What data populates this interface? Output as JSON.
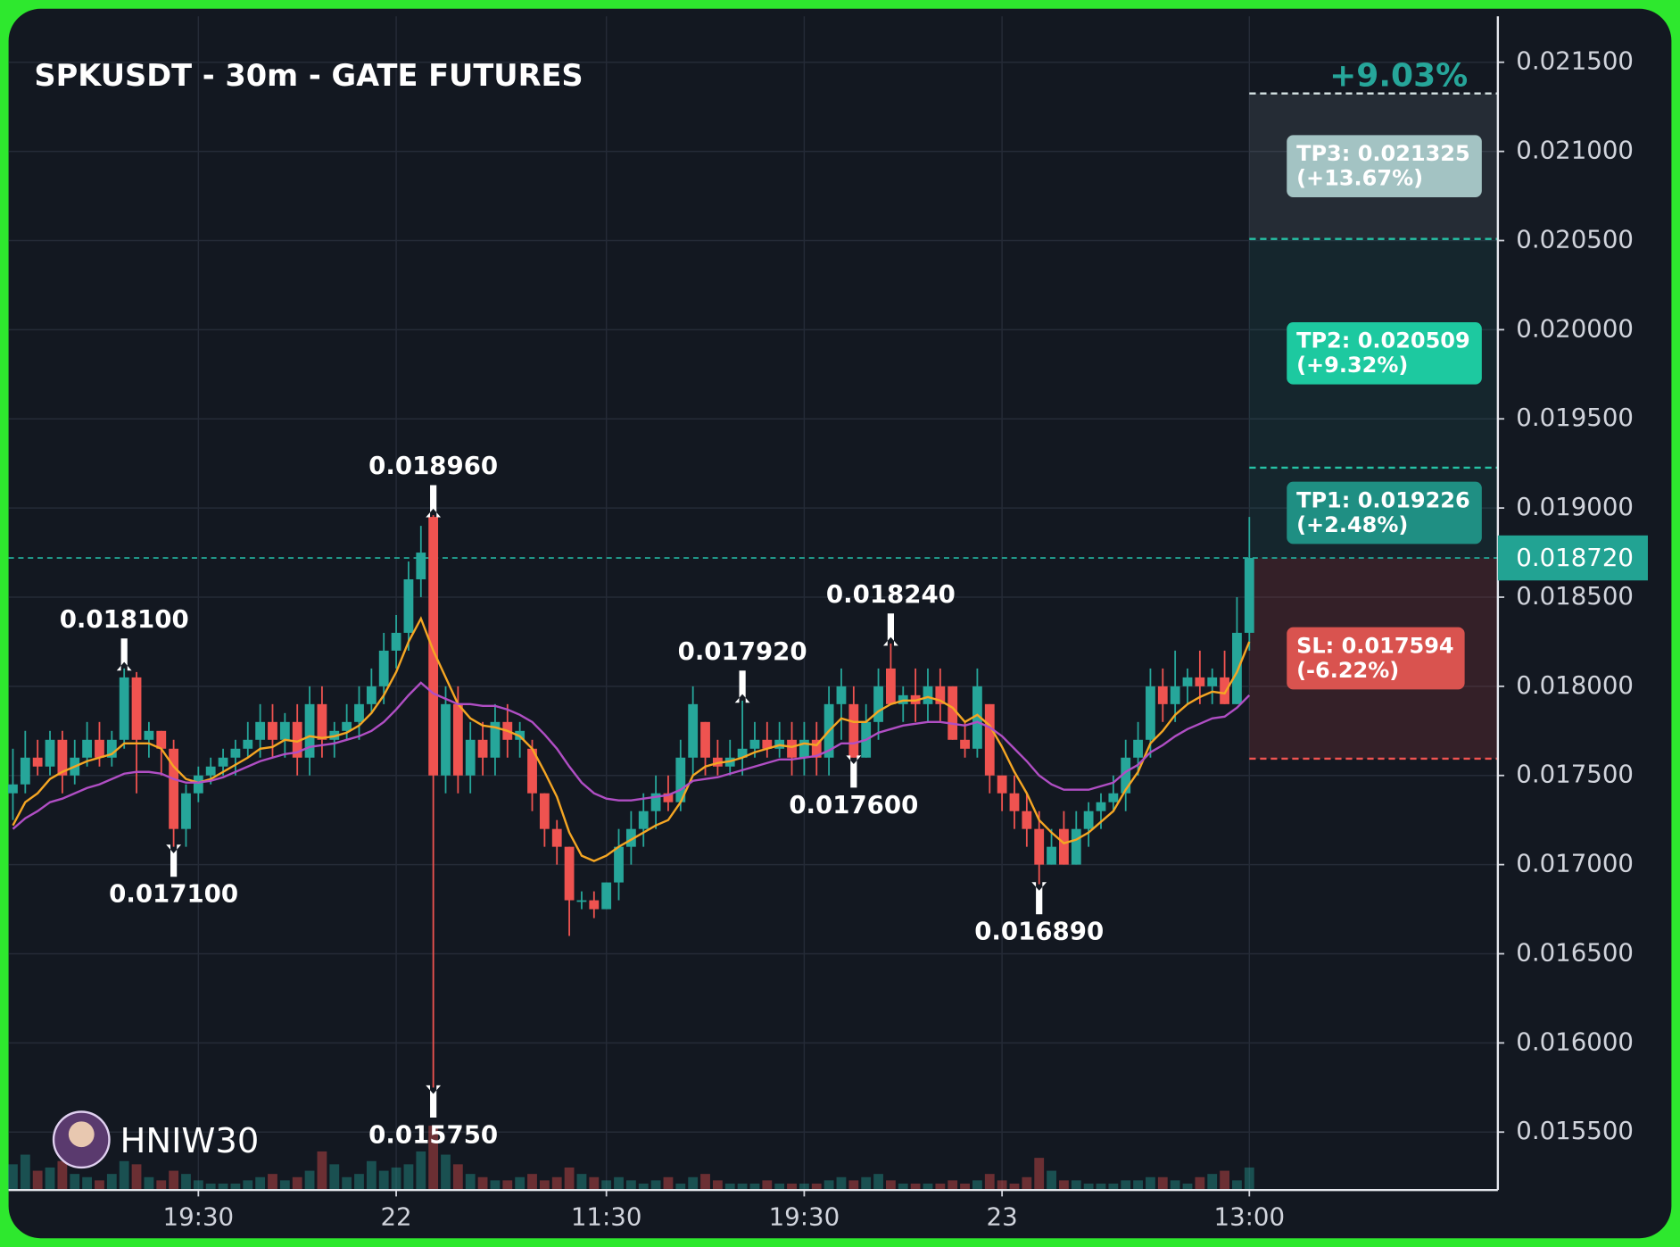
{
  "chart_data": {
    "type": "candlestick",
    "title": "SPKUSDT - 30m - GATE FUTURES",
    "grid": true,
    "up_color": "#26a69a",
    "down_color": "#ef5350",
    "xlim": [
      -0.35,
      120.1
    ],
    "xticks": [
      {
        "value": 15,
        "label": "19:30"
      },
      {
        "value": 31,
        "label": "22"
      },
      {
        "value": 48,
        "label": "11:30"
      },
      {
        "value": 64,
        "label": "19:30"
      },
      {
        "value": 80,
        "label": "23"
      },
      {
        "value": 100,
        "label": "13:00"
      }
    ],
    "ylim": [
      0.015175,
      0.021758
    ],
    "yticks": [
      {
        "value": 0.0155,
        "label": "0.015500"
      },
      {
        "value": 0.016,
        "label": "0.016000"
      },
      {
        "value": 0.0165,
        "label": "0.016500"
      },
      {
        "value": 0.017,
        "label": "0.017000"
      },
      {
        "value": 0.0175,
        "label": "0.017500"
      },
      {
        "value": 0.018,
        "label": "0.018000"
      },
      {
        "value": 0.0185,
        "label": "0.018500"
      },
      {
        "value": 0.019,
        "label": "0.019000"
      },
      {
        "value": 0.0195,
        "label": "0.019500"
      },
      {
        "value": 0.02,
        "label": "0.020000"
      },
      {
        "value": 0.0205,
        "label": "0.020500"
      },
      {
        "value": 0.021,
        "label": "0.021000"
      },
      {
        "value": 0.0215,
        "label": "0.021500"
      }
    ],
    "x": [
      0,
      1,
      2,
      3,
      4,
      5,
      6,
      7,
      8,
      9,
      10,
      11,
      12,
      13,
      14,
      15,
      16,
      17,
      18,
      19,
      20,
      21,
      22,
      23,
      24,
      25,
      26,
      27,
      28,
      29,
      30,
      31,
      32,
      33,
      34,
      35,
      36,
      37,
      38,
      39,
      40,
      41,
      42,
      43,
      44,
      45,
      46,
      47,
      48,
      49,
      50,
      51,
      52,
      53,
      54,
      55,
      56,
      57,
      58,
      59,
      60,
      61,
      62,
      63,
      64,
      65,
      66,
      67,
      68,
      69,
      70,
      71,
      72,
      73,
      74,
      75,
      76,
      77,
      78,
      79,
      80,
      81,
      82,
      83,
      84,
      85,
      86,
      87,
      88,
      89,
      90,
      91,
      92,
      93,
      94,
      95,
      96,
      97,
      98,
      99,
      100
    ],
    "candles": [
      [
        0.0174,
        0.01765,
        0.01725,
        0.01745
      ],
      [
        0.01745,
        0.01775,
        0.0174,
        0.0176
      ],
      [
        0.0176,
        0.0177,
        0.0175,
        0.01755
      ],
      [
        0.01755,
        0.01775,
        0.0175,
        0.0177
      ],
      [
        0.0177,
        0.01775,
        0.0174,
        0.0175
      ],
      [
        0.0175,
        0.0177,
        0.01745,
        0.0176
      ],
      [
        0.0176,
        0.0178,
        0.01755,
        0.0177
      ],
      [
        0.0177,
        0.0178,
        0.01755,
        0.0176
      ],
      [
        0.0176,
        0.01775,
        0.01755,
        0.0177
      ],
      [
        0.0177,
        0.0181,
        0.01765,
        0.01805
      ],
      [
        0.01805,
        0.01808,
        0.0174,
        0.0177
      ],
      [
        0.0177,
        0.0178,
        0.0176,
        0.01775
      ],
      [
        0.01775,
        0.01775,
        0.0175,
        0.01765
      ],
      [
        0.01765,
        0.0177,
        0.0171,
        0.0172
      ],
      [
        0.0172,
        0.01745,
        0.0171,
        0.0174
      ],
      [
        0.0174,
        0.01755,
        0.01735,
        0.0175
      ],
      [
        0.0175,
        0.0176,
        0.01745,
        0.01755
      ],
      [
        0.01755,
        0.01765,
        0.0175,
        0.0176
      ],
      [
        0.0176,
        0.0177,
        0.0175,
        0.01765
      ],
      [
        0.01765,
        0.0178,
        0.0176,
        0.0177
      ],
      [
        0.0177,
        0.0179,
        0.0176,
        0.0178
      ],
      [
        0.0178,
        0.0179,
        0.0176,
        0.0177
      ],
      [
        0.0177,
        0.01785,
        0.0176,
        0.0178
      ],
      [
        0.0178,
        0.0179,
        0.0175,
        0.0176
      ],
      [
        0.0176,
        0.018,
        0.0175,
        0.0179
      ],
      [
        0.0179,
        0.018,
        0.0176,
        0.0177
      ],
      [
        0.0177,
        0.0178,
        0.0176,
        0.01775
      ],
      [
        0.01775,
        0.0179,
        0.0177,
        0.0178
      ],
      [
        0.0178,
        0.018,
        0.0177,
        0.0179
      ],
      [
        0.0179,
        0.0181,
        0.01785,
        0.018
      ],
      [
        0.018,
        0.0183,
        0.0179,
        0.0182
      ],
      [
        0.0182,
        0.0184,
        0.0181,
        0.0183
      ],
      [
        0.0183,
        0.0187,
        0.0182,
        0.0186
      ],
      [
        0.0186,
        0.0189,
        0.0185,
        0.01875
      ],
      [
        0.01895,
        0.01896,
        0.01575,
        0.0175
      ],
      [
        0.0175,
        0.018,
        0.0174,
        0.0179
      ],
      [
        0.0179,
        0.018,
        0.0174,
        0.0175
      ],
      [
        0.0175,
        0.0178,
        0.0174,
        0.0177
      ],
      [
        0.0177,
        0.0178,
        0.0175,
        0.0176
      ],
      [
        0.0176,
        0.0179,
        0.0175,
        0.0178
      ],
      [
        0.0178,
        0.0179,
        0.0176,
        0.0177
      ],
      [
        0.0177,
        0.0178,
        0.0176,
        0.01775
      ],
      [
        0.01765,
        0.0177,
        0.0173,
        0.0174
      ],
      [
        0.0174,
        0.0174,
        0.0171,
        0.0172
      ],
      [
        0.0172,
        0.01725,
        0.017,
        0.0171
      ],
      [
        0.0171,
        0.0171,
        0.0166,
        0.0168
      ],
      [
        0.0168,
        0.01685,
        0.01675,
        0.0168
      ],
      [
        0.0168,
        0.01685,
        0.0167,
        0.01675
      ],
      [
        0.01675,
        0.0169,
        0.01675,
        0.0169
      ],
      [
        0.0169,
        0.0172,
        0.0168,
        0.0171
      ],
      [
        0.0171,
        0.0173,
        0.017,
        0.0172
      ],
      [
        0.0172,
        0.0174,
        0.0171,
        0.0173
      ],
      [
        0.0173,
        0.0175,
        0.0172,
        0.0174
      ],
      [
        0.0174,
        0.0175,
        0.0173,
        0.01735
      ],
      [
        0.01735,
        0.0177,
        0.0173,
        0.0176
      ],
      [
        0.0176,
        0.018,
        0.0175,
        0.0179
      ],
      [
        0.0178,
        0.0178,
        0.0175,
        0.0176
      ],
      [
        0.0176,
        0.0177,
        0.0175,
        0.01755
      ],
      [
        0.01755,
        0.0177,
        0.0175,
        0.0176
      ],
      [
        0.0176,
        0.01792,
        0.0175,
        0.01765
      ],
      [
        0.01765,
        0.0178,
        0.0176,
        0.0177
      ],
      [
        0.0177,
        0.0178,
        0.0176,
        0.01765
      ],
      [
        0.01765,
        0.0178,
        0.0176,
        0.0177
      ],
      [
        0.0177,
        0.0178,
        0.0175,
        0.0176
      ],
      [
        0.0176,
        0.0178,
        0.0175,
        0.0177
      ],
      [
        0.0177,
        0.0178,
        0.0175,
        0.0176
      ],
      [
        0.0176,
        0.018,
        0.0175,
        0.0179
      ],
      [
        0.0179,
        0.0181,
        0.0177,
        0.018
      ],
      [
        0.0179,
        0.018,
        0.0176,
        0.0176
      ],
      [
        0.0176,
        0.0179,
        0.0176,
        0.0178
      ],
      [
        0.0178,
        0.0181,
        0.0177,
        0.018
      ],
      [
        0.0181,
        0.01824,
        0.0179,
        0.0179
      ],
      [
        0.0179,
        0.018,
        0.0178,
        0.01795
      ],
      [
        0.01795,
        0.0181,
        0.0178,
        0.0179
      ],
      [
        0.0179,
        0.0181,
        0.0178,
        0.018
      ],
      [
        0.018,
        0.0181,
        0.0178,
        0.0179
      ],
      [
        0.018,
        0.018,
        0.0177,
        0.0177
      ],
      [
        0.0177,
        0.0178,
        0.0176,
        0.01765
      ],
      [
        0.01765,
        0.0181,
        0.0176,
        0.018
      ],
      [
        0.0179,
        0.0179,
        0.0174,
        0.0175
      ],
      [
        0.0175,
        0.0175,
        0.0173,
        0.0174
      ],
      [
        0.0174,
        0.0175,
        0.0172,
        0.0173
      ],
      [
        0.0173,
        0.0174,
        0.0171,
        0.0172
      ],
      [
        0.0172,
        0.0173,
        0.01689,
        0.017
      ],
      [
        0.017,
        0.0172,
        0.017,
        0.0171
      ],
      [
        0.0172,
        0.0173,
        0.017,
        0.017
      ],
      [
        0.017,
        0.0173,
        0.017,
        0.0172
      ],
      [
        0.0172,
        0.01735,
        0.0171,
        0.0173
      ],
      [
        0.0173,
        0.0174,
        0.0172,
        0.01735
      ],
      [
        0.01735,
        0.0175,
        0.0173,
        0.0174
      ],
      [
        0.0174,
        0.0177,
        0.0173,
        0.0176
      ],
      [
        0.0176,
        0.0178,
        0.0175,
        0.0177
      ],
      [
        0.0177,
        0.0181,
        0.0176,
        0.018
      ],
      [
        0.018,
        0.0181,
        0.0178,
        0.0179
      ],
      [
        0.0179,
        0.0182,
        0.0178,
        0.018
      ],
      [
        0.018,
        0.0181,
        0.0179,
        0.01805
      ],
      [
        0.01805,
        0.0182,
        0.0179,
        0.018
      ],
      [
        0.018,
        0.0181,
        0.0179,
        0.01805
      ],
      [
        0.01805,
        0.0182,
        0.0179,
        0.0179
      ],
      [
        0.0179,
        0.0185,
        0.0179,
        0.0183
      ],
      [
        0.0183,
        0.01895,
        0.0182,
        0.01872
      ]
    ],
    "volume": [
      40,
      55,
      30,
      35,
      45,
      25,
      20,
      15,
      25,
      45,
      40,
      20,
      15,
      30,
      25,
      15,
      10,
      10,
      10,
      15,
      20,
      25,
      15,
      20,
      30,
      60,
      40,
      20,
      25,
      45,
      30,
      35,
      40,
      60,
      100,
      55,
      40,
      25,
      20,
      15,
      15,
      20,
      25,
      15,
      20,
      35,
      25,
      20,
      15,
      20,
      15,
      10,
      15,
      20,
      10,
      20,
      25,
      15,
      10,
      10,
      10,
      15,
      10,
      10,
      10,
      10,
      15,
      20,
      15,
      20,
      25,
      15,
      10,
      10,
      10,
      10,
      15,
      10,
      15,
      25,
      15,
      10,
      20,
      50,
      30,
      15,
      15,
      10,
      10,
      10,
      15,
      15,
      20,
      20,
      15,
      10,
      20,
      25,
      30,
      15,
      35
    ],
    "lines": [
      {
        "color": "#f5a623",
        "values": [
          0.01722,
          0.01735,
          0.0174,
          0.01748,
          0.01752,
          0.01755,
          0.01758,
          0.0176,
          0.01762,
          0.01768,
          0.01768,
          0.01768,
          0.01765,
          0.01755,
          0.01748,
          0.01746,
          0.01748,
          0.01752,
          0.01756,
          0.0176,
          0.01765,
          0.01766,
          0.0177,
          0.01769,
          0.01772,
          0.01771,
          0.01772,
          0.01774,
          0.01778,
          0.01785,
          0.01795,
          0.01808,
          0.01825,
          0.01838,
          0.0182,
          0.01805,
          0.0179,
          0.01782,
          0.01778,
          0.01777,
          0.01775,
          0.01772,
          0.01765,
          0.01752,
          0.01738,
          0.01718,
          0.01705,
          0.01702,
          0.01705,
          0.0171,
          0.01714,
          0.01718,
          0.01722,
          0.01725,
          0.01735,
          0.0175,
          0.01755,
          0.01757,
          0.01758,
          0.0176,
          0.01763,
          0.01765,
          0.01767,
          0.01766,
          0.01768,
          0.01767,
          0.01775,
          0.01782,
          0.0178,
          0.0178,
          0.01786,
          0.0179,
          0.01792,
          0.01792,
          0.01794,
          0.01792,
          0.01788,
          0.0178,
          0.01784,
          0.01778,
          0.01766,
          0.01752,
          0.0174,
          0.01725,
          0.01718,
          0.01712,
          0.01714,
          0.01718,
          0.01724,
          0.0173,
          0.01742,
          0.01752,
          0.01768,
          0.01775,
          0.01784,
          0.0179,
          0.01794,
          0.01797,
          0.01796,
          0.01808,
          0.01825
        ]
      },
      {
        "color": "#b04ec4",
        "values": [
          0.0172,
          0.01726,
          0.0173,
          0.01735,
          0.01737,
          0.0174,
          0.01743,
          0.01745,
          0.01748,
          0.01751,
          0.01752,
          0.01752,
          0.01751,
          0.01748,
          0.01746,
          0.01746,
          0.01747,
          0.01749,
          0.01752,
          0.01755,
          0.01758,
          0.0176,
          0.01762,
          0.01763,
          0.01766,
          0.01767,
          0.01768,
          0.0177,
          0.01772,
          0.01775,
          0.0178,
          0.01787,
          0.01795,
          0.01802,
          0.01796,
          0.01793,
          0.0179,
          0.0179,
          0.01789,
          0.01789,
          0.01787,
          0.01784,
          0.0178,
          0.01773,
          0.01765,
          0.01755,
          0.01746,
          0.0174,
          0.01737,
          0.01736,
          0.01736,
          0.01737,
          0.01738,
          0.01739,
          0.01742,
          0.01747,
          0.01748,
          0.01749,
          0.01751,
          0.01753,
          0.01755,
          0.01757,
          0.01759,
          0.01759,
          0.0176,
          0.01761,
          0.01764,
          0.01768,
          0.01768,
          0.0177,
          0.01774,
          0.01776,
          0.01778,
          0.01779,
          0.0178,
          0.0178,
          0.01779,
          0.01778,
          0.0178,
          0.01777,
          0.01772,
          0.01765,
          0.01758,
          0.0175,
          0.01745,
          0.01742,
          0.01742,
          0.01742,
          0.01744,
          0.01746,
          0.01752,
          0.01756,
          0.01763,
          0.01767,
          0.01772,
          0.01776,
          0.01779,
          0.01782,
          0.01783,
          0.01788,
          0.01795
        ]
      }
    ],
    "extremes": [
      {
        "x": 9,
        "value": 0.0181,
        "label": "0.018100",
        "side": "high"
      },
      {
        "x": 13,
        "value": 0.0171,
        "label": "0.017100",
        "side": "low"
      },
      {
        "x": 34,
        "value": 0.01896,
        "label": "0.018960",
        "side": "high"
      },
      {
        "x": 34,
        "value": 0.01575,
        "label": "0.015750",
        "side": "low"
      },
      {
        "x": 59,
        "value": 0.01792,
        "label": "0.017920",
        "side": "high"
      },
      {
        "x": 68,
        "value": 0.0176,
        "label": "0.017600",
        "side": "low"
      },
      {
        "x": 71,
        "value": 0.01824,
        "label": "0.018240",
        "side": "high"
      },
      {
        "x": 83,
        "value": 0.01689,
        "label": "0.016890",
        "side": "low"
      }
    ],
    "entry": {
      "value": 0.01872,
      "label": "0.018720",
      "color": "#22a393"
    },
    "gain_label": "+9.03%",
    "targets": [
      {
        "value": 0.021325,
        "label": "TP3: 0.021325",
        "change": "(+13.67%)",
        "color": "#a3c3c3",
        "line_color": "#d6e4e4",
        "zone": "rgba(170,190,200,0.12)"
      },
      {
        "value": 0.020509,
        "label": "TP2: 0.020509",
        "change": "(+9.32%)",
        "color": "#1dc9a0",
        "line_color": "#26c2a5",
        "zone": "rgba(38,166,154,0.10)"
      },
      {
        "value": 0.019226,
        "label": "TP1: 0.019226",
        "change": "(+2.48%)",
        "color": "#1f8f83",
        "line_color": "#26c2a5",
        "zone": "rgba(38,166,154,0.10)"
      }
    ],
    "stop": {
      "value": 0.017594,
      "label": "SL: 0.017594",
      "change": "(-6.22%)",
      "color": "#d9534f",
      "line_color": "#ef5350",
      "zone": "rgba(239,83,80,0.15)"
    }
  },
  "watermark": "HNIW30"
}
